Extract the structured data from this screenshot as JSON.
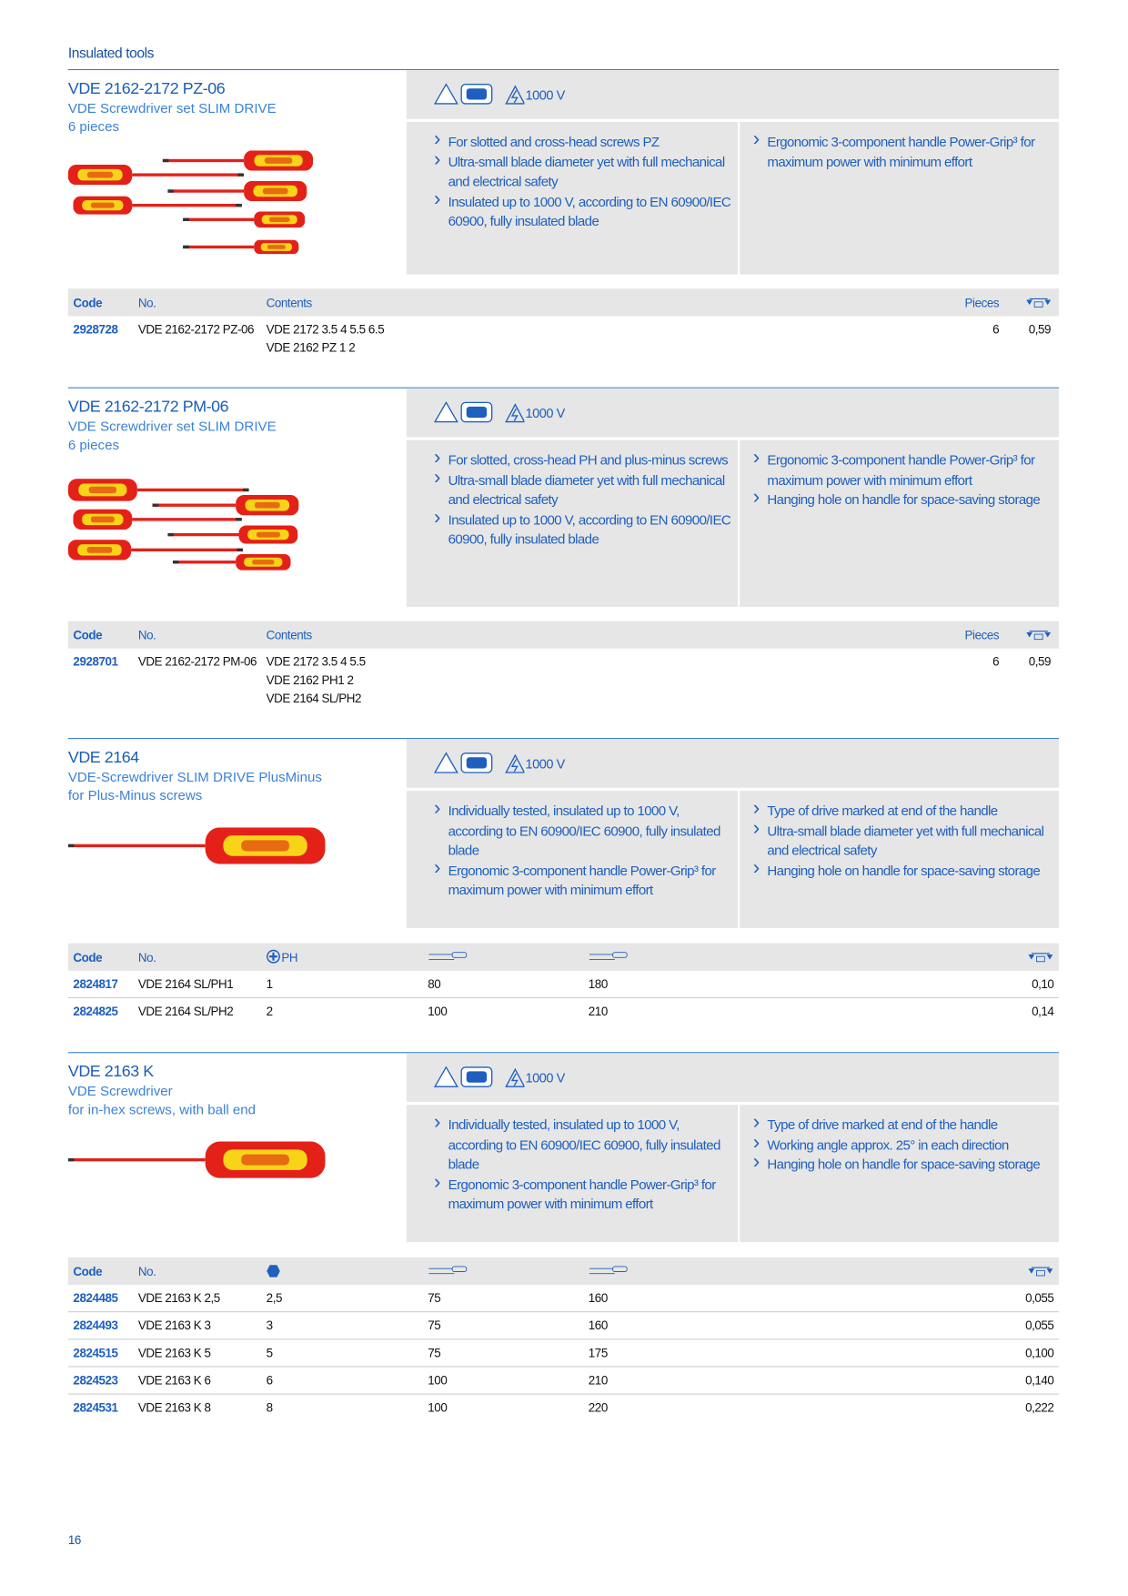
{
  "header": {
    "section": "Insulated tools"
  },
  "sections": [
    {
      "title": "VDE 2162-2172 PZ-06",
      "subtitle": [
        "VDE Screwdriver set SLIM DRIVE",
        "6 pieces"
      ],
      "voltage": "1000 V",
      "features_left": [
        "For slotted and cross-head screws PZ",
        "Ultra-small blade diameter yet with full mechanical and electrical safety",
        "Insulated up to 1000 V, according to EN 60900/IEC 60900, fully insulated blade"
      ],
      "features_right": [
        "Ergonomic 3-component handle Power-Grip³ for maximum power  with minimum effort"
      ],
      "table": {
        "columns": [
          "Code",
          "No.",
          "Contents",
          "Pieces"
        ],
        "rows": [
          [
            "2928728",
            "VDE 2162-2172 PZ-06",
            [
              "VDE 2172 3.5 4 5.5 6.5",
              "VDE 2162 PZ 1 2"
            ],
            "6",
            "0,59"
          ]
        ]
      }
    },
    {
      "title": "VDE 2162-2172 PM-06",
      "subtitle": [
        "VDE Screwdriver set SLIM DRIVE",
        "6 pieces"
      ],
      "voltage": "1000 V",
      "features_left": [
        "For slotted, cross-head PH and plus-minus screws",
        "Ultra-small blade diameter yet with full mechanical and electrical safety",
        "Insulated up to 1000 V, according to EN 60900/IEC 60900, fully insulated blade"
      ],
      "features_right": [
        "Ergonomic 3-component handle Power-Grip³ for maximum power  with minimum effort",
        "Hanging hole on handle for space-saving storage"
      ],
      "table": {
        "columns": [
          "Code",
          "No.",
          "Contents",
          "Pieces"
        ],
        "rows": [
          [
            "2928701",
            "VDE 2162-2172 PM-06",
            [
              "VDE 2172 3.5 4 5.5",
              "VDE 2162 PH1 2",
              "VDE 2164 SL/PH2"
            ],
            "6",
            "0,59"
          ]
        ]
      }
    },
    {
      "title": "VDE 2164",
      "subtitle": [
        "VDE-Screwdriver SLIM DRIVE PlusMinus",
        "for Plus-Minus screws"
      ],
      "voltage": "1000 V",
      "features_left": [
        "Individually tested, insulated up to 1000 V, according to EN 60900/IEC 60900, fully insulated blade",
        "Ergonomic 3-component handle Power-Grip³ for maximum power  with minimum effort"
      ],
      "features_right": [
        "Type of drive marked at end of the handle",
        "Ultra-small blade diameter yet with full mechanical and electrical safety",
        "Hanging hole on handle for space-saving storage"
      ],
      "table": {
        "columns": [
          "Code",
          "No.",
          "PH"
        ],
        "rows": [
          [
            "2824817",
            "VDE 2164 SL/PH1",
            "1",
            "80",
            "180",
            "0,10"
          ],
          [
            "2824825",
            "VDE 2164 SL/PH2",
            "2",
            "100",
            "210",
            "0,14"
          ]
        ]
      }
    },
    {
      "title": "VDE 2163 K",
      "subtitle": [
        "VDE Screwdriver",
        "for in-hex screws, with ball end"
      ],
      "voltage": "1000 V",
      "features_left": [
        "Individually tested, insulated up to 1000 V, according to EN 60900/IEC 60900, fully insulated blade",
        "Ergonomic 3-component handle Power-Grip³ for maximum power  with minimum effort"
      ],
      "features_right": [
        "Type of drive marked at end of the handle",
        "Working angle approx. 25° in each direction",
        "Hanging hole on handle for space-saving storage"
      ],
      "table": {
        "columns": [
          "Code",
          "No."
        ],
        "rows": [
          [
            "2824485",
            "VDE 2163 K 2,5",
            "2,5",
            "75",
            "160",
            "0,055"
          ],
          [
            "2824493",
            "VDE 2163 K 3",
            "3",
            "75",
            "160",
            "0,055"
          ],
          [
            "2824515",
            "VDE 2163 K 5",
            "5",
            "75",
            "175",
            "0,100"
          ],
          [
            "2824523",
            "VDE 2163 K 6",
            "6",
            "100",
            "210",
            "0,140"
          ],
          [
            "2824531",
            "VDE 2163 K 8",
            "8",
            "100",
            "220",
            "0,222"
          ]
        ]
      }
    }
  ],
  "footer": {
    "page": "16"
  }
}
